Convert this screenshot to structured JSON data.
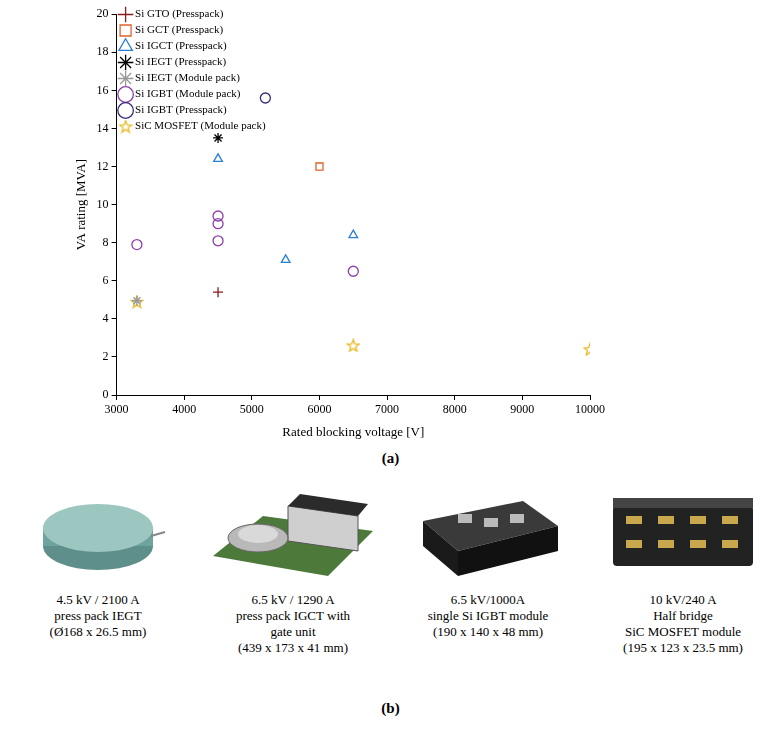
{
  "chart_data": {
    "type": "scatter",
    "x_label": "Rated blocking voltage [V]",
    "y_label": "VA rating [MVA]",
    "xlim": [
      3000,
      10000
    ],
    "xticks": [
      3000,
      4000,
      5000,
      6000,
      7000,
      8000,
      9000,
      10000
    ],
    "ylim": [
      0,
      20
    ],
    "yticks": [
      0,
      2,
      4,
      6,
      8,
      10,
      12,
      14,
      16,
      18,
      20
    ],
    "grid": false,
    "legend": "upper right",
    "series": [
      {
        "name": "Si GTO (Presspack)",
        "color": "#8b1a1a",
        "marker": "plus",
        "x": [
          4500
        ],
        "values": [
          5.4
        ]
      },
      {
        "name": "Si GCT (Presspack)",
        "color": "#e0622a",
        "marker": "square",
        "x": [
          6000
        ],
        "values": [
          12
        ]
      },
      {
        "name": "Si IGCT (Presspack)",
        "color": "#2a7fd4",
        "marker": "triangle",
        "x": [
          4500,
          5500,
          6500
        ],
        "values": [
          12.4,
          7.1,
          8.4
        ]
      },
      {
        "name": "Si IEGT (Presspack)",
        "color": "#000000",
        "marker": "asterisk",
        "x": [
          4500
        ],
        "values": [
          13.5
        ]
      },
      {
        "name": "Si IEGT (Module pack)",
        "color": "#999999",
        "marker": "asterisk",
        "x": [
          3300
        ],
        "values": [
          4.95
        ]
      },
      {
        "name": "Si IGBT (Module pack)",
        "color": "#8b3fa8",
        "marker": "circle",
        "x": [
          3300,
          4500,
          4500,
          4500,
          6500
        ],
        "values": [
          7.9,
          9.4,
          9.0,
          8.1,
          6.5
        ]
      },
      {
        "name": "Si IGBT (Presspack)",
        "color": "#3b2a7a",
        "marker": "circle",
        "x": [
          5200
        ],
        "values": [
          15.6
        ]
      },
      {
        "name": "SiC MOSFET (Module pack)",
        "color": "#e8b923",
        "marker": "pentagram",
        "x": [
          3300,
          6500,
          10000
        ],
        "values": [
          4.9,
          2.6,
          2.4
        ]
      }
    ]
  },
  "panel_a": "(a)",
  "panel_b": "(b)",
  "devices": [
    {
      "lines": [
        "4.5 kV / 2100 A",
        "press pack IEGT",
        "(Ø168 x 26.5 mm)"
      ]
    },
    {
      "lines": [
        "6.5 kV / 1290 A",
        "press pack IGCT with",
        "gate unit",
        "(439 x 173 x 41 mm)"
      ]
    },
    {
      "lines": [
        "6.5 kV/1000A",
        "single Si IGBT module",
        "(190 x 140 x 48 mm)"
      ]
    },
    {
      "lines": [
        "10 kV/240 A",
        "Half bridge",
        "SiC MOSFET module",
        "(195 x 123 x 23.5 mm)"
      ]
    }
  ]
}
